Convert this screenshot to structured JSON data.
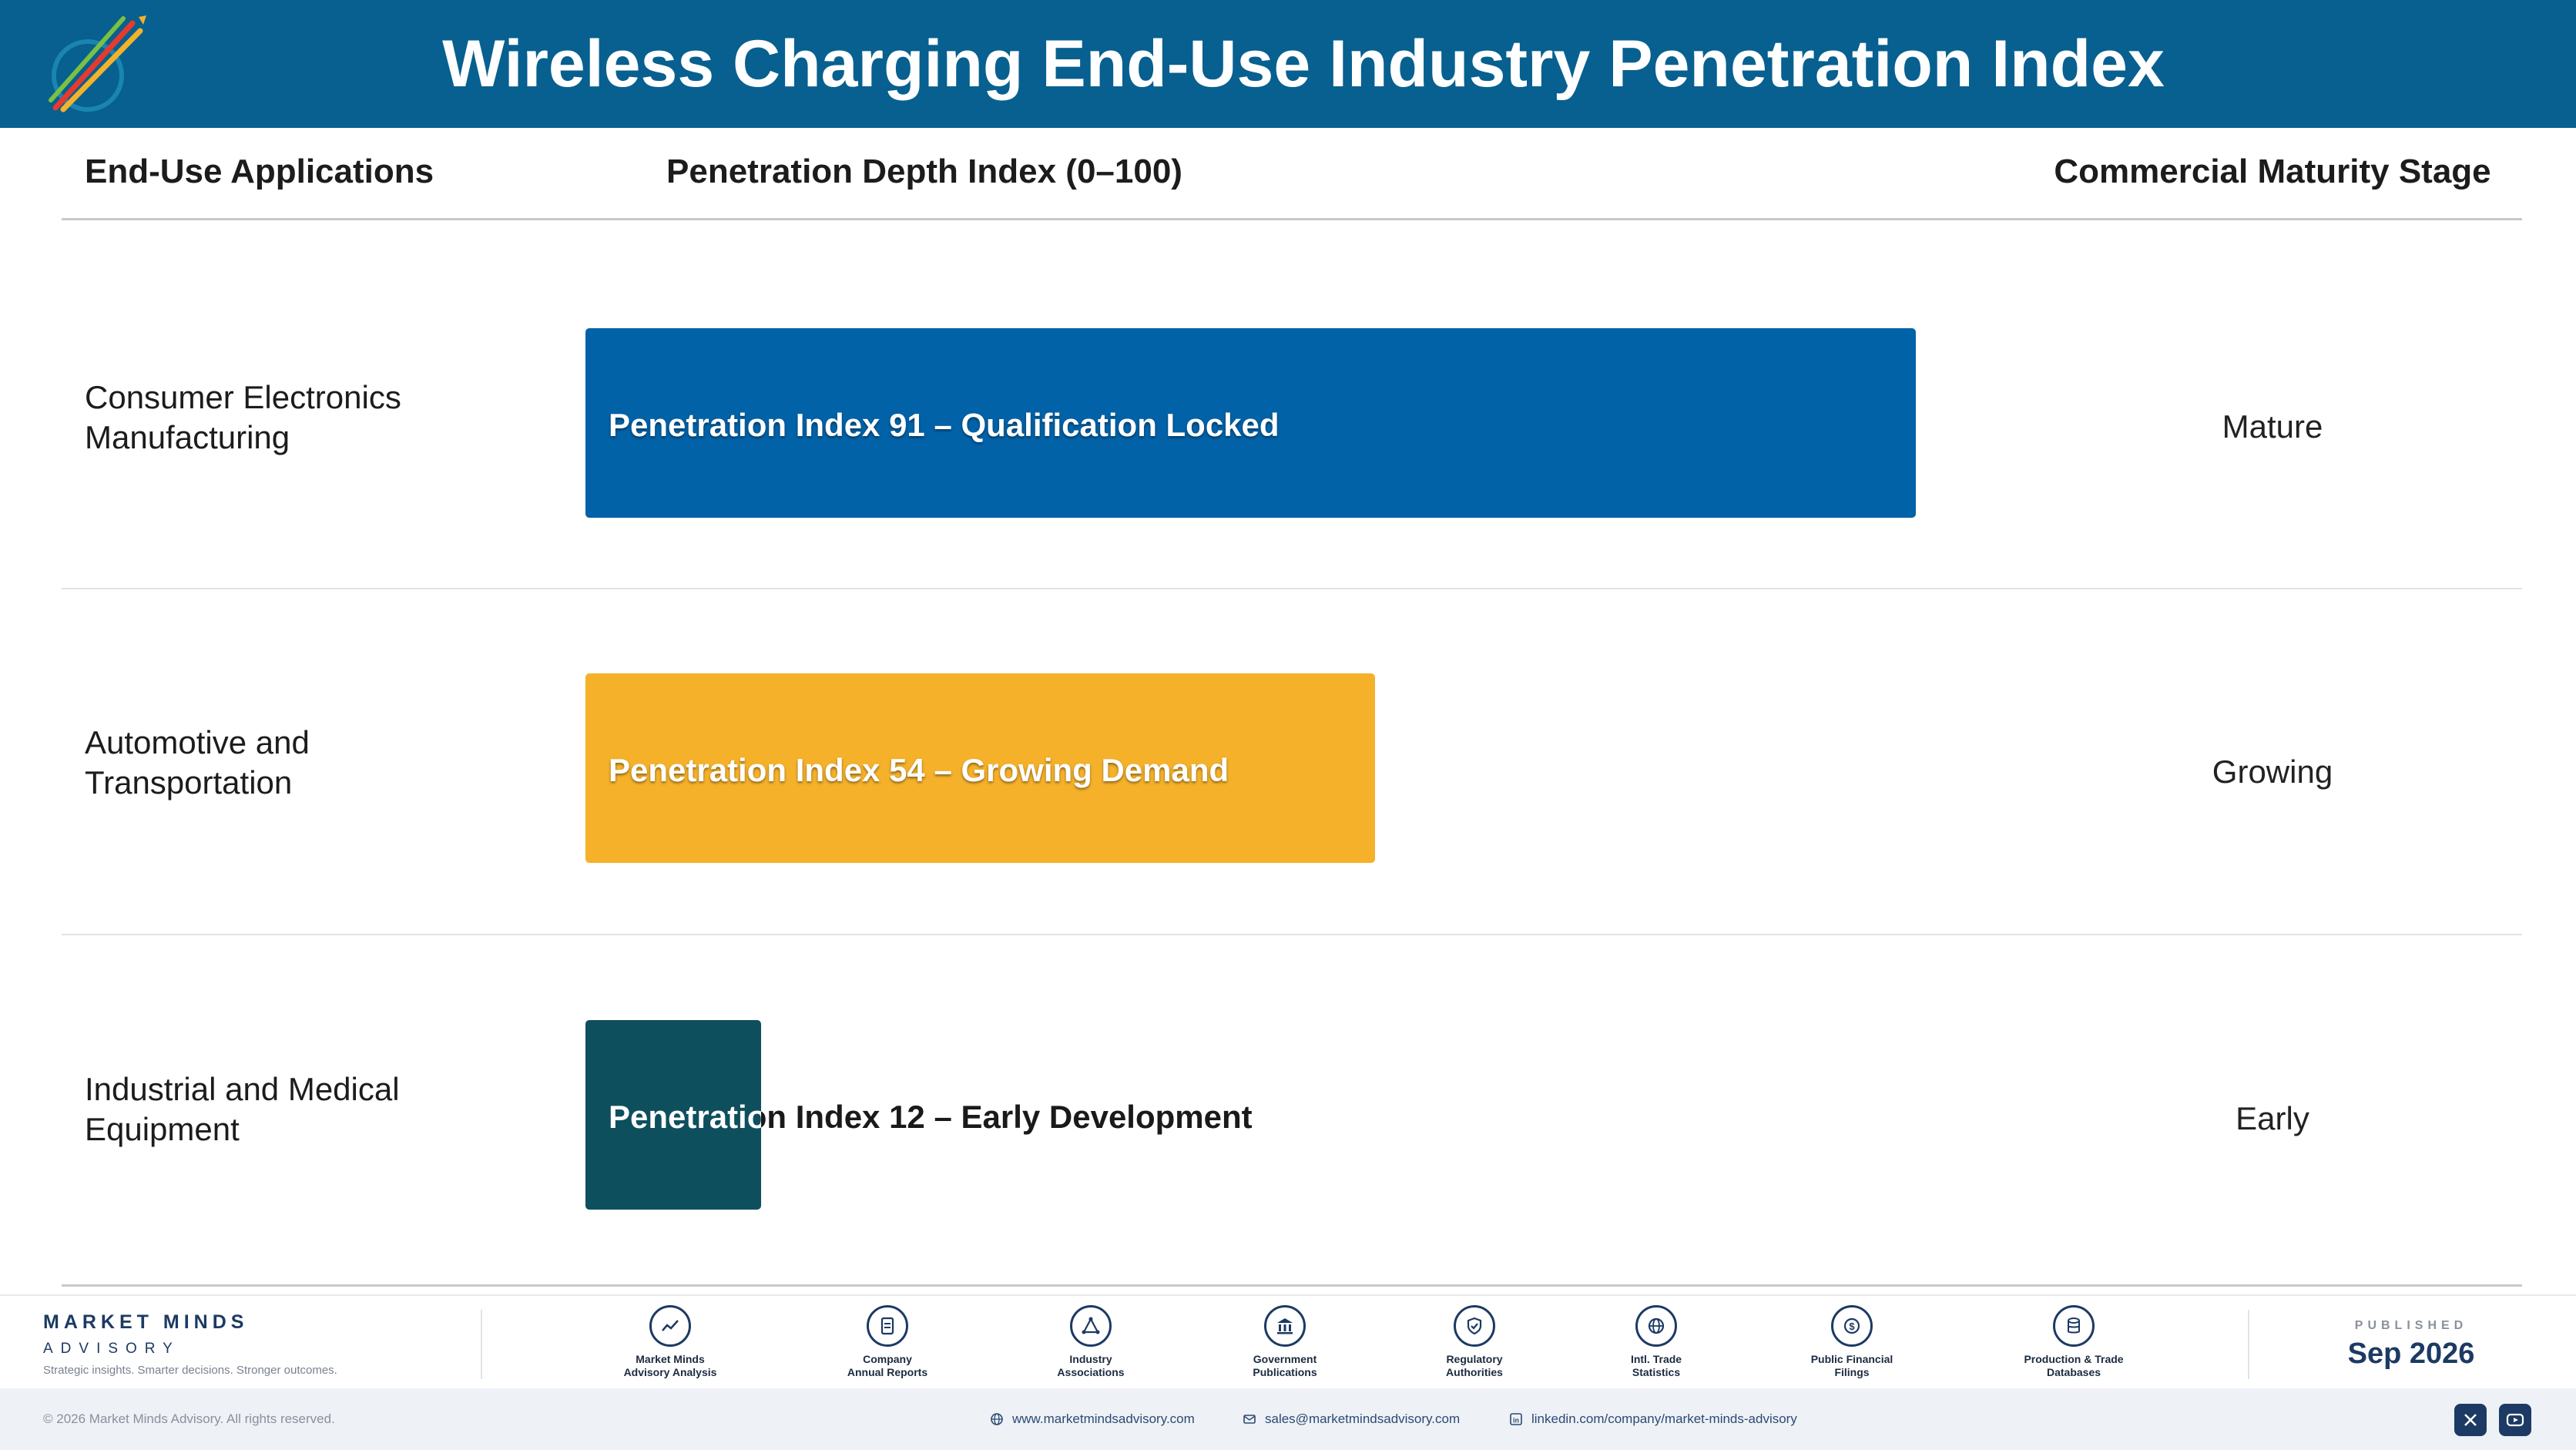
{
  "header": {
    "title": "Wireless Charging End-Use Industry Penetration Index",
    "logo_icon": "rocket-logo-icon"
  },
  "columns": {
    "applications": "End-Use Applications",
    "index": "Penetration Depth Index (0–100)",
    "stage": "Commercial Maturity Stage"
  },
  "chart_data": {
    "type": "bar",
    "orientation": "horizontal",
    "xlim": [
      0,
      100
    ],
    "categories": [
      "Consumer Electronics Manufacturing",
      "Automotive and Transportation",
      "Industrial and Medical Equipment"
    ],
    "values": [
      91,
      54,
      12
    ],
    "bar_labels": [
      "Penetration Index 91 – Qualification Locked",
      "Penetration Index 54 – Growing Demand",
      "Penetration Index 12 – Early Development"
    ],
    "stages": [
      "Mature",
      "Growing",
      "Early"
    ],
    "colors": [
      "#0262a8",
      "#f5b12a",
      "#0e4f5e"
    ],
    "grid": false
  },
  "rows": [
    {
      "label_line1": "Consumer Electronics",
      "label_line2": "Manufacturing",
      "bar_label": "Penetration Index 91 – Qualification Locked",
      "stage": "Mature"
    },
    {
      "label_line1": "Automotive and",
      "label_line2": "Transportation",
      "bar_label": "Penetration Index 54 – Growing Demand",
      "stage": "Growing"
    },
    {
      "label_line1": "Industrial and Medical",
      "label_line2": "Equipment",
      "bar_label": "Penetration Index 12 – Early Development",
      "stage": "Early"
    }
  ],
  "footer": {
    "brand_name": "MARKET MINDS",
    "brand_sub": "ADVISORY",
    "tagline": "Strategic insights. Smarter decisions. Stronger outcomes.",
    "sources": [
      {
        "line1": "Market Minds",
        "line2": "Advisory Analysis",
        "icon": "trend-chart-icon"
      },
      {
        "line1": "Company",
        "line2": "Annual Reports",
        "icon": "document-icon"
      },
      {
        "line1": "Industry",
        "line2": "Associations",
        "icon": "network-icon"
      },
      {
        "line1": "Government",
        "line2": "Publications",
        "icon": "bank-icon"
      },
      {
        "line1": "Regulatory",
        "line2": "Authorities",
        "icon": "shield-icon"
      },
      {
        "line1": "Intl. Trade",
        "line2": "Statistics",
        "icon": "globe-icon"
      },
      {
        "line1": "Public Financial",
        "line2": "Filings",
        "icon": "dollar-icon"
      },
      {
        "line1": "Production & Trade",
        "line2": "Databases",
        "icon": "database-icon"
      }
    ],
    "published_label": "PUBLISHED",
    "published_date": "Sep 2026",
    "copyright": "© 2026 Market Minds Advisory. All rights reserved.",
    "website": "www.marketmindsadvisory.com",
    "email": "sales@marketmindsadvisory.com",
    "linkedin": "linkedin.com/company/market-minds-advisory",
    "colors": {
      "navy": "#1c3a63",
      "header_blue": "#07608f"
    }
  }
}
